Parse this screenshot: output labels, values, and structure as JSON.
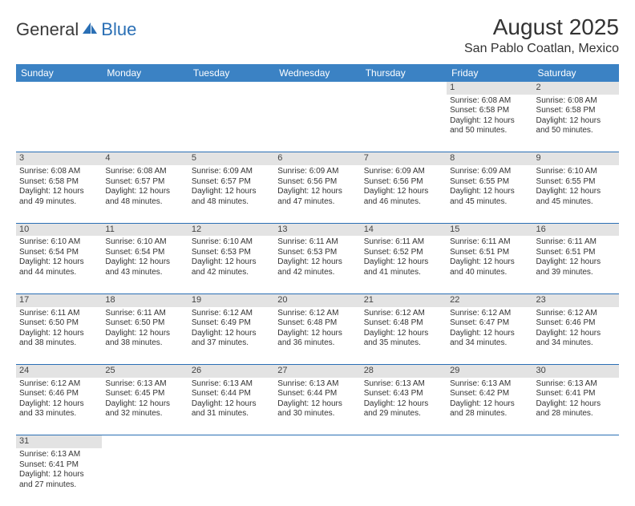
{
  "logo": {
    "general": "General",
    "blue": "Blue"
  },
  "title": "August 2025",
  "location": "San Pablo Coatlan, Mexico",
  "colors": {
    "header_bg": "#3b82c4",
    "header_text": "#ffffff",
    "daynum_bg": "#e3e3e3",
    "row_divider": "#2a6fb5",
    "text": "#333333",
    "logo_blue": "#2a6fb5"
  },
  "days_of_week": [
    "Sunday",
    "Monday",
    "Tuesday",
    "Wednesday",
    "Thursday",
    "Friday",
    "Saturday"
  ],
  "weeks": [
    {
      "nums": [
        "",
        "",
        "",
        "",
        "",
        "1",
        "2"
      ],
      "cells": [
        null,
        null,
        null,
        null,
        null,
        {
          "sunrise": "Sunrise: 6:08 AM",
          "sunset": "Sunset: 6:58 PM",
          "day1": "Daylight: 12 hours",
          "day2": "and 50 minutes."
        },
        {
          "sunrise": "Sunrise: 6:08 AM",
          "sunset": "Sunset: 6:58 PM",
          "day1": "Daylight: 12 hours",
          "day2": "and 50 minutes."
        }
      ]
    },
    {
      "nums": [
        "3",
        "4",
        "5",
        "6",
        "7",
        "8",
        "9"
      ],
      "cells": [
        {
          "sunrise": "Sunrise: 6:08 AM",
          "sunset": "Sunset: 6:58 PM",
          "day1": "Daylight: 12 hours",
          "day2": "and 49 minutes."
        },
        {
          "sunrise": "Sunrise: 6:08 AM",
          "sunset": "Sunset: 6:57 PM",
          "day1": "Daylight: 12 hours",
          "day2": "and 48 minutes."
        },
        {
          "sunrise": "Sunrise: 6:09 AM",
          "sunset": "Sunset: 6:57 PM",
          "day1": "Daylight: 12 hours",
          "day2": "and 48 minutes."
        },
        {
          "sunrise": "Sunrise: 6:09 AM",
          "sunset": "Sunset: 6:56 PM",
          "day1": "Daylight: 12 hours",
          "day2": "and 47 minutes."
        },
        {
          "sunrise": "Sunrise: 6:09 AM",
          "sunset": "Sunset: 6:56 PM",
          "day1": "Daylight: 12 hours",
          "day2": "and 46 minutes."
        },
        {
          "sunrise": "Sunrise: 6:09 AM",
          "sunset": "Sunset: 6:55 PM",
          "day1": "Daylight: 12 hours",
          "day2": "and 45 minutes."
        },
        {
          "sunrise": "Sunrise: 6:10 AM",
          "sunset": "Sunset: 6:55 PM",
          "day1": "Daylight: 12 hours",
          "day2": "and 45 minutes."
        }
      ]
    },
    {
      "nums": [
        "10",
        "11",
        "12",
        "13",
        "14",
        "15",
        "16"
      ],
      "cells": [
        {
          "sunrise": "Sunrise: 6:10 AM",
          "sunset": "Sunset: 6:54 PM",
          "day1": "Daylight: 12 hours",
          "day2": "and 44 minutes."
        },
        {
          "sunrise": "Sunrise: 6:10 AM",
          "sunset": "Sunset: 6:54 PM",
          "day1": "Daylight: 12 hours",
          "day2": "and 43 minutes."
        },
        {
          "sunrise": "Sunrise: 6:10 AM",
          "sunset": "Sunset: 6:53 PM",
          "day1": "Daylight: 12 hours",
          "day2": "and 42 minutes."
        },
        {
          "sunrise": "Sunrise: 6:11 AM",
          "sunset": "Sunset: 6:53 PM",
          "day1": "Daylight: 12 hours",
          "day2": "and 42 minutes."
        },
        {
          "sunrise": "Sunrise: 6:11 AM",
          "sunset": "Sunset: 6:52 PM",
          "day1": "Daylight: 12 hours",
          "day2": "and 41 minutes."
        },
        {
          "sunrise": "Sunrise: 6:11 AM",
          "sunset": "Sunset: 6:51 PM",
          "day1": "Daylight: 12 hours",
          "day2": "and 40 minutes."
        },
        {
          "sunrise": "Sunrise: 6:11 AM",
          "sunset": "Sunset: 6:51 PM",
          "day1": "Daylight: 12 hours",
          "day2": "and 39 minutes."
        }
      ]
    },
    {
      "nums": [
        "17",
        "18",
        "19",
        "20",
        "21",
        "22",
        "23"
      ],
      "cells": [
        {
          "sunrise": "Sunrise: 6:11 AM",
          "sunset": "Sunset: 6:50 PM",
          "day1": "Daylight: 12 hours",
          "day2": "and 38 minutes."
        },
        {
          "sunrise": "Sunrise: 6:11 AM",
          "sunset": "Sunset: 6:50 PM",
          "day1": "Daylight: 12 hours",
          "day2": "and 38 minutes."
        },
        {
          "sunrise": "Sunrise: 6:12 AM",
          "sunset": "Sunset: 6:49 PM",
          "day1": "Daylight: 12 hours",
          "day2": "and 37 minutes."
        },
        {
          "sunrise": "Sunrise: 6:12 AM",
          "sunset": "Sunset: 6:48 PM",
          "day1": "Daylight: 12 hours",
          "day2": "and 36 minutes."
        },
        {
          "sunrise": "Sunrise: 6:12 AM",
          "sunset": "Sunset: 6:48 PM",
          "day1": "Daylight: 12 hours",
          "day2": "and 35 minutes."
        },
        {
          "sunrise": "Sunrise: 6:12 AM",
          "sunset": "Sunset: 6:47 PM",
          "day1": "Daylight: 12 hours",
          "day2": "and 34 minutes."
        },
        {
          "sunrise": "Sunrise: 6:12 AM",
          "sunset": "Sunset: 6:46 PM",
          "day1": "Daylight: 12 hours",
          "day2": "and 34 minutes."
        }
      ]
    },
    {
      "nums": [
        "24",
        "25",
        "26",
        "27",
        "28",
        "29",
        "30"
      ],
      "cells": [
        {
          "sunrise": "Sunrise: 6:12 AM",
          "sunset": "Sunset: 6:46 PM",
          "day1": "Daylight: 12 hours",
          "day2": "and 33 minutes."
        },
        {
          "sunrise": "Sunrise: 6:13 AM",
          "sunset": "Sunset: 6:45 PM",
          "day1": "Daylight: 12 hours",
          "day2": "and 32 minutes."
        },
        {
          "sunrise": "Sunrise: 6:13 AM",
          "sunset": "Sunset: 6:44 PM",
          "day1": "Daylight: 12 hours",
          "day2": "and 31 minutes."
        },
        {
          "sunrise": "Sunrise: 6:13 AM",
          "sunset": "Sunset: 6:44 PM",
          "day1": "Daylight: 12 hours",
          "day2": "and 30 minutes."
        },
        {
          "sunrise": "Sunrise: 6:13 AM",
          "sunset": "Sunset: 6:43 PM",
          "day1": "Daylight: 12 hours",
          "day2": "and 29 minutes."
        },
        {
          "sunrise": "Sunrise: 6:13 AM",
          "sunset": "Sunset: 6:42 PM",
          "day1": "Daylight: 12 hours",
          "day2": "and 28 minutes."
        },
        {
          "sunrise": "Sunrise: 6:13 AM",
          "sunset": "Sunset: 6:41 PM",
          "day1": "Daylight: 12 hours",
          "day2": "and 28 minutes."
        }
      ]
    },
    {
      "nums": [
        "31",
        "",
        "",
        "",
        "",
        "",
        ""
      ],
      "cells": [
        {
          "sunrise": "Sunrise: 6:13 AM",
          "sunset": "Sunset: 6:41 PM",
          "day1": "Daylight: 12 hours",
          "day2": "and 27 minutes."
        },
        null,
        null,
        null,
        null,
        null,
        null
      ]
    }
  ]
}
